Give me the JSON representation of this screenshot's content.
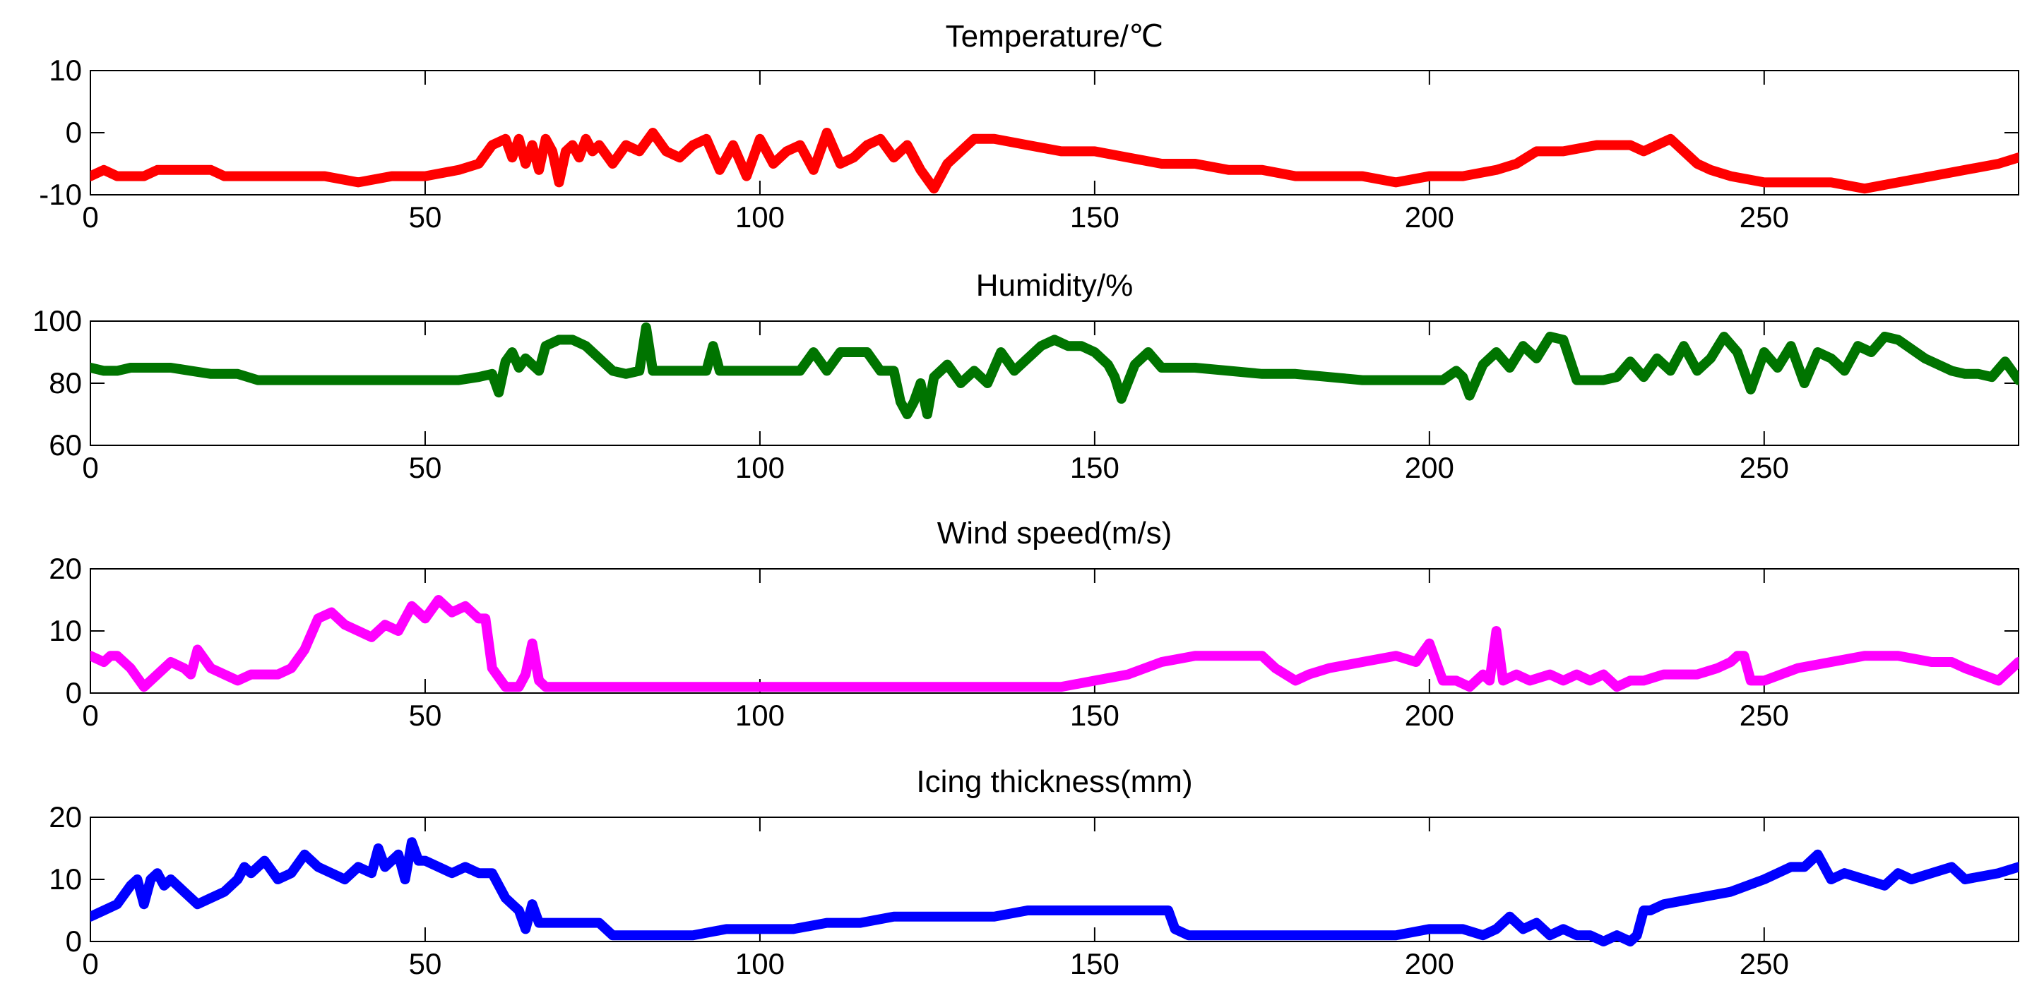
{
  "chart_data": [
    {
      "type": "line",
      "title": "Temperature/℃",
      "color": "#ff0000",
      "xlim": [
        0,
        288
      ],
      "ylim": [
        -10,
        10
      ],
      "xticks": [
        "0",
        "50",
        "100",
        "150",
        "200",
        "250"
      ],
      "yticks": [
        "10",
        "0",
        "-10"
      ],
      "series": [
        {
          "name": "Temperature",
          "x": [
            0,
            2,
            4,
            6,
            8,
            10,
            12,
            15,
            18,
            20,
            25,
            30,
            35,
            40,
            45,
            50,
            55,
            58,
            60,
            62,
            63,
            64,
            65,
            66,
            67,
            68,
            69,
            70,
            71,
            72,
            73,
            74,
            75,
            76,
            78,
            80,
            82,
            84,
            86,
            88,
            90,
            92,
            94,
            96,
            98,
            100,
            102,
            104,
            106,
            108,
            110,
            112,
            114,
            116,
            118,
            120,
            122,
            124,
            126,
            128,
            130,
            132,
            135,
            140,
            145,
            150,
            155,
            160,
            165,
            170,
            175,
            180,
            185,
            190,
            195,
            200,
            205,
            210,
            213,
            216,
            220,
            225,
            230,
            232,
            234,
            236,
            238,
            240,
            242,
            245,
            250,
            255,
            260,
            265,
            270,
            275,
            280,
            285,
            288
          ],
          "values": [
            -7,
            -6,
            -7,
            -7,
            -7,
            -6,
            -6,
            -6,
            -6,
            -7,
            -7,
            -7,
            -7,
            -8,
            -7,
            -7,
            -6,
            -5,
            -2,
            -1,
            -4,
            -1,
            -5,
            -2,
            -6,
            -1,
            -3,
            -8,
            -3,
            -2,
            -4,
            -1,
            -3,
            -2,
            -5,
            -2,
            -3,
            0,
            -3,
            -4,
            -2,
            -1,
            -6,
            -2,
            -7,
            -1,
            -5,
            -3,
            -2,
            -6,
            0,
            -5,
            -4,
            -2,
            -1,
            -4,
            -2,
            -6,
            -9,
            -5,
            -3,
            -1,
            -1,
            -2,
            -3,
            -3,
            -4,
            -5,
            -5,
            -6,
            -6,
            -7,
            -7,
            -7,
            -8,
            -7,
            -7,
            -6,
            -5,
            -3,
            -3,
            -2,
            -2,
            -3,
            -2,
            -1,
            -3,
            -5,
            -6,
            -7,
            -8,
            -8,
            -8,
            -9,
            -8,
            -7,
            -6,
            -5,
            -4
          ]
        }
      ]
    },
    {
      "type": "line",
      "title": "Humidity/%",
      "color": "#007400",
      "xlim": [
        0,
        288
      ],
      "ylim": [
        60,
        100
      ],
      "xticks": [
        "0",
        "50",
        "100",
        "150",
        "200",
        "250"
      ],
      "yticks": [
        "100",
        "80",
        "60"
      ],
      "series": [
        {
          "name": "Humidity",
          "x": [
            0,
            2,
            4,
            6,
            8,
            10,
            12,
            15,
            18,
            20,
            22,
            25,
            30,
            35,
            40,
            45,
            50,
            55,
            58,
            60,
            61,
            62,
            63,
            64,
            65,
            66,
            67,
            68,
            70,
            72,
            74,
            76,
            78,
            80,
            82,
            83,
            84,
            86,
            88,
            90,
            92,
            93,
            94,
            96,
            100,
            102,
            104,
            106,
            108,
            110,
            112,
            114,
            116,
            118,
            119,
            120,
            121,
            122,
            123,
            124,
            125,
            126,
            128,
            130,
            132,
            134,
            136,
            138,
            140,
            142,
            144,
            146,
            148,
            150,
            152,
            153,
            154,
            156,
            158,
            160,
            165,
            170,
            175,
            180,
            185,
            190,
            195,
            200,
            202,
            204,
            205,
            206,
            208,
            210,
            212,
            214,
            216,
            218,
            220,
            222,
            224,
            226,
            228,
            230,
            232,
            234,
            236,
            238,
            240,
            242,
            244,
            246,
            248,
            250,
            252,
            254,
            256,
            258,
            260,
            262,
            264,
            266,
            268,
            270,
            274,
            278,
            280,
            282,
            284,
            286,
            288
          ],
          "values": [
            85,
            84,
            84,
            85,
            85,
            85,
            85,
            84,
            83,
            83,
            83,
            81,
            81,
            81,
            81,
            81,
            81,
            81,
            82,
            83,
            77,
            87,
            90,
            85,
            88,
            86,
            84,
            92,
            94,
            94,
            92,
            88,
            84,
            83,
            84,
            98,
            84,
            84,
            84,
            84,
            84,
            92,
            84,
            84,
            84,
            84,
            84,
            84,
            90,
            84,
            90,
            90,
            90,
            84,
            84,
            84,
            74,
            70,
            74,
            80,
            70,
            82,
            86,
            80,
            84,
            80,
            90,
            84,
            88,
            92,
            94,
            92,
            92,
            90,
            86,
            82,
            75,
            86,
            90,
            85,
            85,
            84,
            83,
            83,
            82,
            81,
            81,
            81,
            81,
            84,
            82,
            76,
            86,
            90,
            85,
            92,
            88,
            95,
            94,
            81,
            81,
            81,
            82,
            87,
            82,
            88,
            84,
            92,
            84,
            88,
            95,
            90,
            78,
            90,
            85,
            92,
            80,
            90,
            88,
            84,
            92,
            90,
            95,
            94,
            88,
            84,
            83,
            83,
            82,
            87,
            81
          ]
        }
      ]
    },
    {
      "type": "line",
      "title": "Wind speed(m/s)",
      "color": "#ff00ff",
      "xlim": [
        0,
        288
      ],
      "ylim": [
        0,
        20
      ],
      "xticks": [
        "0",
        "50",
        "100",
        "150",
        "200",
        "250"
      ],
      "yticks": [
        "20",
        "10",
        "0"
      ],
      "series": [
        {
          "name": "Wind speed",
          "x": [
            0,
            2,
            3,
            4,
            6,
            8,
            10,
            12,
            14,
            15,
            16,
            18,
            20,
            22,
            24,
            26,
            28,
            30,
            32,
            34,
            36,
            38,
            40,
            42,
            44,
            46,
            48,
            50,
            52,
            54,
            56,
            58,
            59,
            60,
            62,
            64,
            65,
            66,
            67,
            68,
            70,
            72,
            74,
            76,
            78,
            80,
            85,
            90,
            95,
            100,
            105,
            110,
            115,
            120,
            125,
            130,
            135,
            140,
            145,
            150,
            155,
            160,
            165,
            170,
            175,
            177,
            180,
            182,
            185,
            190,
            195,
            198,
            200,
            202,
            204,
            206,
            208,
            209,
            210,
            211,
            213,
            215,
            218,
            220,
            222,
            224,
            226,
            228,
            230,
            232,
            235,
            240,
            243,
            245,
            246,
            247,
            248,
            250,
            255,
            260,
            265,
            270,
            275,
            278,
            280,
            285,
            288
          ],
          "values": [
            6,
            5,
            6,
            6,
            4,
            1,
            3,
            5,
            4,
            3,
            7,
            4,
            3,
            2,
            3,
            3,
            3,
            4,
            7,
            12,
            13,
            11,
            10,
            9,
            11,
            10,
            14,
            12,
            15,
            13,
            14,
            12,
            12,
            4,
            1,
            1,
            3,
            8,
            2,
            1,
            1,
            1,
            1,
            1,
            1,
            1,
            1,
            1,
            1,
            1,
            1,
            1,
            1,
            1,
            1,
            1,
            1,
            1,
            1,
            2,
            3,
            5,
            6,
            6,
            6,
            4,
            2,
            3,
            4,
            5,
            6,
            5,
            8,
            2,
            2,
            1,
            3,
            2,
            10,
            2,
            3,
            2,
            3,
            2,
            3,
            2,
            3,
            1,
            2,
            2,
            3,
            3,
            4,
            5,
            6,
            6,
            2,
            2,
            4,
            5,
            6,
            6,
            5,
            5,
            4,
            2,
            5
          ]
        }
      ]
    },
    {
      "type": "line",
      "title": "Icing thickness(mm)",
      "color": "#0000ff",
      "xlim": [
        0,
        288
      ],
      "ylim": [
        0,
        20
      ],
      "xticks": [
        "0",
        "50",
        "100",
        "150",
        "200",
        "250"
      ],
      "yticks": [
        "20",
        "10",
        "0"
      ],
      "series": [
        {
          "name": "Icing thickness",
          "x": [
            0,
            2,
            4,
            6,
            7,
            8,
            9,
            10,
            11,
            12,
            14,
            16,
            18,
            20,
            22,
            23,
            24,
            26,
            28,
            30,
            32,
            34,
            36,
            38,
            40,
            42,
            43,
            44,
            46,
            47,
            48,
            49,
            50,
            52,
            54,
            56,
            58,
            60,
            62,
            63,
            64,
            65,
            66,
            67,
            68,
            70,
            74,
            76,
            78,
            80,
            85,
            90,
            95,
            100,
            105,
            110,
            115,
            120,
            125,
            130,
            135,
            140,
            145,
            150,
            155,
            160,
            161,
            162,
            164,
            166,
            170,
            175,
            180,
            185,
            190,
            195,
            200,
            205,
            208,
            210,
            212,
            214,
            216,
            218,
            220,
            222,
            224,
            226,
            228,
            230,
            231,
            232,
            233,
            235,
            240,
            245,
            250,
            252,
            254,
            256,
            258,
            260,
            262,
            265,
            268,
            270,
            272,
            275,
            278,
            280,
            285,
            288
          ],
          "values": [
            4,
            5,
            6,
            9,
            10,
            6,
            10,
            11,
            9,
            10,
            8,
            6,
            7,
            8,
            10,
            12,
            11,
            13,
            10,
            11,
            14,
            12,
            11,
            10,
            12,
            11,
            15,
            12,
            14,
            10,
            16,
            13,
            13,
            12,
            11,
            12,
            11,
            11,
            7,
            6,
            5,
            2,
            6,
            3,
            3,
            3,
            3,
            3,
            1,
            1,
            1,
            1,
            2,
            2,
            2,
            3,
            3,
            4,
            4,
            4,
            4,
            5,
            5,
            5,
            5,
            5,
            5,
            2,
            1,
            1,
            1,
            1,
            1,
            1,
            1,
            1,
            2,
            2,
            1,
            2,
            4,
            2,
            3,
            1,
            2,
            1,
            1,
            0,
            1,
            0,
            1,
            5,
            5,
            6,
            7,
            8,
            10,
            11,
            12,
            12,
            14,
            10,
            11,
            10,
            9,
            11,
            10,
            11,
            12,
            10,
            11,
            12
          ]
        }
      ]
    }
  ]
}
